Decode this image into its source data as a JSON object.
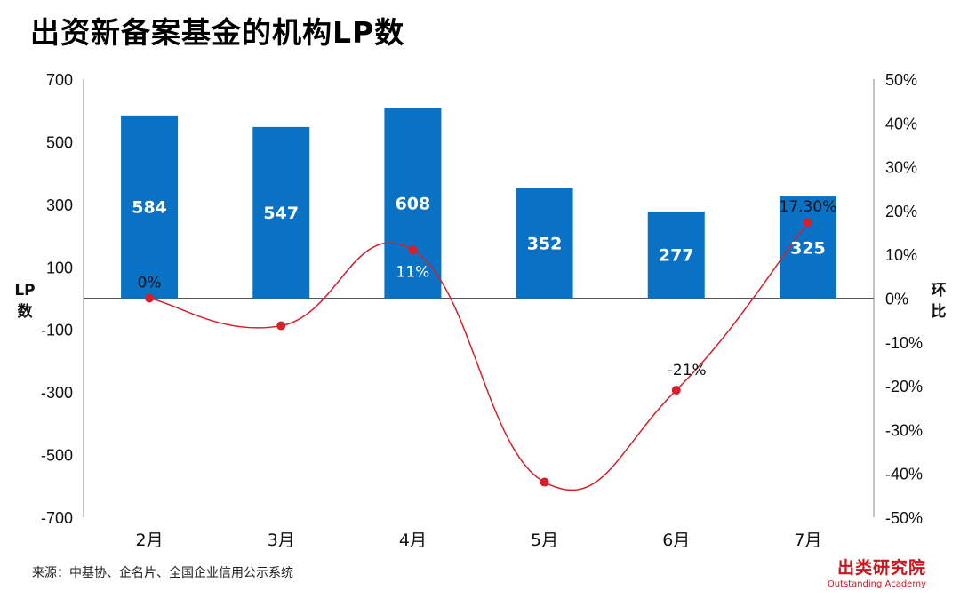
{
  "title": "出资新备案基金的机构LP数",
  "source": "来源：中基协、企名片、全国企业信用公示系统",
  "brand": {
    "cn": "出类研究院",
    "en": "Outstanding Academy"
  },
  "colors": {
    "bar": "#0a72c4",
    "line": "#d61f2a",
    "bar_label": "#ffffff"
  },
  "chart_data": {
    "type": "bar",
    "categories": [
      "2月",
      "3月",
      "4月",
      "5月",
      "6月",
      "7月"
    ],
    "series": [
      {
        "name": "LP数",
        "axis": "left",
        "type": "bar",
        "values": [
          584,
          547,
          608,
          352,
          277,
          325
        ]
      },
      {
        "name": "环比",
        "axis": "right",
        "type": "line",
        "values": [
          0,
          -6.3,
          11,
          -42,
          -21,
          17.3
        ]
      }
    ],
    "bar_labels": [
      "584",
      "547",
      "608",
      "352",
      "277",
      "325"
    ],
    "line_labels": [
      "0%",
      "",
      "11%",
      "",
      "-21%",
      "17.30%"
    ],
    "ylabel": "LP数",
    "y2label": "环比",
    "ylim": [
      -700,
      700
    ],
    "y2lim": [
      -50,
      50
    ],
    "yticks": [
      "700",
      "500",
      "300",
      "100",
      "-100",
      "-300",
      "-500",
      "-700"
    ],
    "y2ticks": [
      "50%",
      "40%",
      "30%",
      "20%",
      "10%",
      "0%",
      "-10%",
      "-20%",
      "-30%",
      "-40%",
      "-50%"
    ],
    "ytick_values": [
      700,
      500,
      300,
      100,
      -100,
      -300,
      -500,
      -700
    ],
    "y2tick_values": [
      50,
      40,
      30,
      20,
      10,
      0,
      -10,
      -20,
      -30,
      -40,
      -50
    ]
  }
}
